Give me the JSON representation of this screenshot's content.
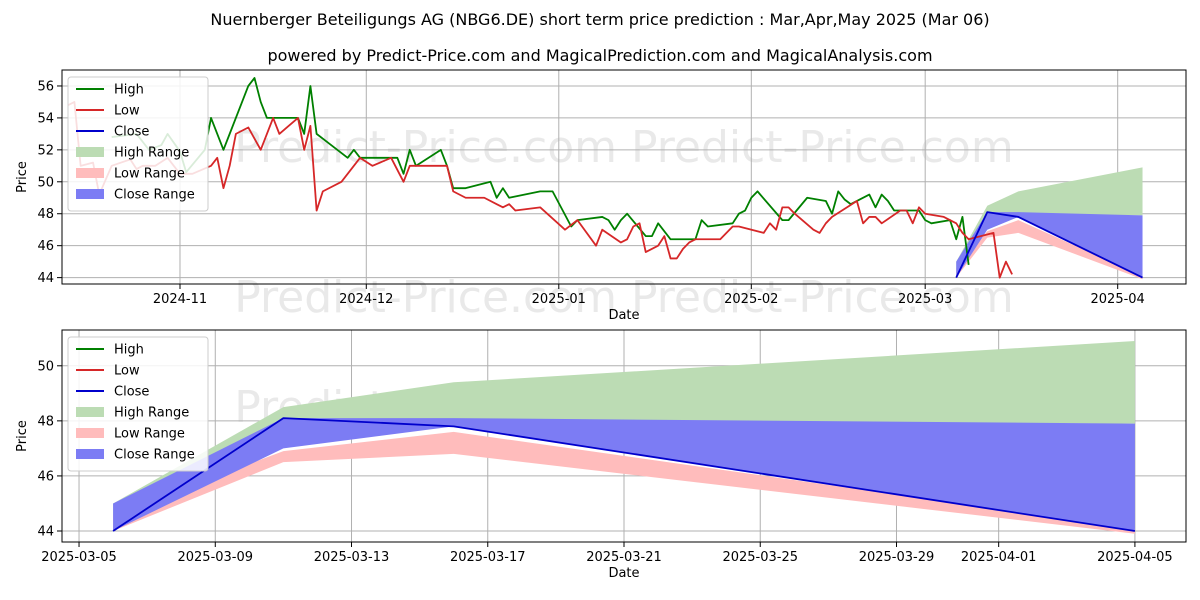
{
  "header": {
    "title": "Nuernberger Beteiligungs AG (NBG6.DE) short term price prediction : Mar,Apr,May 2025 (Mar 06)",
    "subtitle": "powered by Predict-Price.com and MagicalPrediction.com and MagicalAnalysis.com"
  },
  "watermark": "Predict-Price.com",
  "colors": {
    "high": "#008000",
    "low": "#d62728",
    "close": "#0000cc",
    "high_range": "#bcdcb4",
    "low_range": "#ffbcbc",
    "close_range": "#7c7cf4",
    "grid": "#b0b0b0"
  },
  "legend": [
    {
      "label": "High",
      "kind": "line",
      "color": "#008000"
    },
    {
      "label": "Low",
      "kind": "line",
      "color": "#d62728"
    },
    {
      "label": "Close",
      "kind": "line",
      "color": "#0000cc"
    },
    {
      "label": "High Range",
      "kind": "area",
      "color": "#bcdcb4"
    },
    {
      "label": "Low Range",
      "kind": "area",
      "color": "#ffbcbc"
    },
    {
      "label": "Close Range",
      "kind": "area",
      "color": "#7c7cf4"
    }
  ],
  "chart_data": [
    {
      "type": "line",
      "xlabel": "Date",
      "ylabel": "Price",
      "xlim": [
        "2024-10-13",
        "2025-04-12"
      ],
      "ylim": [
        43.6,
        57.0
      ],
      "x_ticks": [
        {
          "date": "2024-11-01",
          "label": "2024-11"
        },
        {
          "date": "2024-12-01",
          "label": "2024-12"
        },
        {
          "date": "2025-01-01",
          "label": "2025-01"
        },
        {
          "date": "2025-02-01",
          "label": "2025-02"
        },
        {
          "date": "2025-03-01",
          "label": "2025-03"
        },
        {
          "date": "2025-04-01",
          "label": "2025-04"
        }
      ],
      "y_ticks": [
        44,
        46,
        48,
        50,
        52,
        54,
        56
      ],
      "grid": true,
      "legend_position": "top-left",
      "history": {
        "high": [
          [
            "2024-10-21",
            52.8
          ],
          [
            "2024-10-25",
            53.0
          ],
          [
            "2024-10-27",
            52.0
          ],
          [
            "2024-10-29",
            52.3
          ],
          [
            "2024-10-30",
            53.0
          ],
          [
            "2024-11-01",
            51.9
          ],
          [
            "2024-11-02",
            50.6
          ],
          [
            "2024-11-05",
            52.0
          ],
          [
            "2024-11-06",
            54.0
          ],
          [
            "2024-11-08",
            52.0
          ],
          [
            "2024-11-09",
            53.0
          ],
          [
            "2024-11-12",
            56.0
          ],
          [
            "2024-11-13",
            56.5
          ],
          [
            "2024-11-14",
            55.0
          ],
          [
            "2024-11-15",
            54.0
          ],
          [
            "2024-11-20",
            54.0
          ],
          [
            "2024-11-21",
            53.0
          ],
          [
            "2024-11-22",
            56.0
          ],
          [
            "2024-11-23",
            53.0
          ],
          [
            "2024-11-25",
            52.4
          ],
          [
            "2024-11-28",
            51.5
          ],
          [
            "2024-11-29",
            52.0
          ],
          [
            "2024-11-30",
            51.5
          ],
          [
            "2024-12-04",
            51.5
          ],
          [
            "2024-12-06",
            51.5
          ],
          [
            "2024-12-07",
            50.5
          ],
          [
            "2024-12-08",
            52.0
          ],
          [
            "2024-12-09",
            51.0
          ],
          [
            "2024-12-13",
            52.0
          ],
          [
            "2024-12-14",
            51.0
          ],
          [
            "2024-12-15",
            49.6
          ],
          [
            "2024-12-17",
            49.6
          ],
          [
            "2024-12-21",
            50.0
          ],
          [
            "2024-12-22",
            49.0
          ],
          [
            "2024-12-23",
            49.6
          ],
          [
            "2024-12-24",
            49.0
          ],
          [
            "2024-12-29",
            49.4
          ],
          [
            "2024-12-31",
            49.4
          ],
          [
            "2025-01-03",
            47.2
          ],
          [
            "2025-01-04",
            47.6
          ],
          [
            "2025-01-08",
            47.8
          ],
          [
            "2025-01-09",
            47.6
          ],
          [
            "2025-01-10",
            47.0
          ],
          [
            "2025-01-11",
            47.6
          ],
          [
            "2025-01-12",
            48.0
          ],
          [
            "2025-01-15",
            46.6
          ],
          [
            "2025-01-16",
            46.6
          ],
          [
            "2025-01-17",
            47.4
          ],
          [
            "2025-01-19",
            46.4
          ],
          [
            "2025-01-23",
            46.4
          ],
          [
            "2025-01-24",
            47.6
          ],
          [
            "2025-01-25",
            47.2
          ],
          [
            "2025-01-29",
            47.4
          ],
          [
            "2025-01-30",
            48.0
          ],
          [
            "2025-01-31",
            48.2
          ],
          [
            "2025-02-01",
            49.0
          ],
          [
            "2025-02-02",
            49.4
          ],
          [
            "2025-02-06",
            47.6
          ],
          [
            "2025-02-07",
            47.6
          ],
          [
            "2025-02-10",
            49.0
          ],
          [
            "2025-02-13",
            48.8
          ],
          [
            "2025-02-14",
            48.0
          ],
          [
            "2025-02-15",
            49.4
          ],
          [
            "2025-02-16",
            48.9
          ],
          [
            "2025-02-17",
            48.6
          ],
          [
            "2025-02-20",
            49.2
          ],
          [
            "2025-02-21",
            48.4
          ],
          [
            "2025-02-22",
            49.2
          ],
          [
            "2025-02-23",
            48.8
          ],
          [
            "2025-02-24",
            48.2
          ],
          [
            "2025-02-28",
            48.2
          ],
          [
            "2025-03-01",
            47.6
          ],
          [
            "2025-03-02",
            47.4
          ],
          [
            "2025-03-05",
            47.6
          ],
          [
            "2025-03-06",
            46.4
          ],
          [
            "2025-03-07",
            47.8
          ],
          [
            "2025-03-08",
            44.8
          ]
        ],
        "low": [
          [
            "2024-10-14",
            54.8
          ],
          [
            "2024-10-15",
            55.0
          ],
          [
            "2024-10-16",
            51.0
          ],
          [
            "2024-10-18",
            51.2
          ],
          [
            "2024-10-19",
            49.2
          ],
          [
            "2024-10-21",
            51.0
          ],
          [
            "2024-10-24",
            51.4
          ],
          [
            "2024-10-25",
            50.8
          ],
          [
            "2024-10-26",
            51.0
          ],
          [
            "2024-10-28",
            51.0
          ],
          [
            "2024-10-30",
            51.5
          ],
          [
            "2024-11-01",
            50.5
          ],
          [
            "2024-11-03",
            50.5
          ],
          [
            "2024-11-06",
            51.0
          ],
          [
            "2024-11-07",
            51.5
          ],
          [
            "2024-11-08",
            49.6
          ],
          [
            "2024-11-09",
            51.0
          ],
          [
            "2024-11-10",
            53.0
          ],
          [
            "2024-11-12",
            53.4
          ],
          [
            "2024-11-14",
            52.0
          ],
          [
            "2024-11-16",
            54.0
          ],
          [
            "2024-11-17",
            53.0
          ],
          [
            "2024-11-20",
            54.0
          ],
          [
            "2024-11-21",
            52.0
          ],
          [
            "2024-11-22",
            53.5
          ],
          [
            "2024-11-23",
            48.2
          ],
          [
            "2024-11-24",
            49.4
          ],
          [
            "2024-11-27",
            50.0
          ],
          [
            "2024-11-29",
            51.0
          ],
          [
            "2024-11-30",
            51.5
          ],
          [
            "2024-12-02",
            51.0
          ],
          [
            "2024-12-05",
            51.5
          ],
          [
            "2024-12-07",
            50.0
          ],
          [
            "2024-12-08",
            51.0
          ],
          [
            "2024-12-14",
            51.0
          ],
          [
            "2024-12-15",
            49.4
          ],
          [
            "2024-12-17",
            49.0
          ],
          [
            "2024-12-20",
            49.0
          ],
          [
            "2024-12-22",
            48.6
          ],
          [
            "2024-12-23",
            48.4
          ],
          [
            "2024-12-24",
            48.6
          ],
          [
            "2024-12-25",
            48.2
          ],
          [
            "2024-12-29",
            48.4
          ],
          [
            "2025-01-02",
            47.0
          ],
          [
            "2025-01-04",
            47.6
          ],
          [
            "2025-01-07",
            46.0
          ],
          [
            "2025-01-08",
            47.0
          ],
          [
            "2025-01-11",
            46.2
          ],
          [
            "2025-01-12",
            46.4
          ],
          [
            "2025-01-13",
            47.2
          ],
          [
            "2025-01-14",
            47.4
          ],
          [
            "2025-01-15",
            45.6
          ],
          [
            "2025-01-17",
            46.0
          ],
          [
            "2025-01-18",
            46.6
          ],
          [
            "2025-01-19",
            45.2
          ],
          [
            "2025-01-20",
            45.2
          ],
          [
            "2025-01-21",
            45.8
          ],
          [
            "2025-01-22",
            46.2
          ],
          [
            "2025-01-23",
            46.4
          ],
          [
            "2025-01-27",
            46.4
          ],
          [
            "2025-01-28",
            46.8
          ],
          [
            "2025-01-29",
            47.2
          ],
          [
            "2025-01-30",
            47.2
          ],
          [
            "2025-02-03",
            46.8
          ],
          [
            "2025-02-04",
            47.4
          ],
          [
            "2025-02-05",
            47.0
          ],
          [
            "2025-02-06",
            48.4
          ],
          [
            "2025-02-07",
            48.4
          ],
          [
            "2025-02-08",
            48.0
          ],
          [
            "2025-02-11",
            47.0
          ],
          [
            "2025-02-12",
            46.8
          ],
          [
            "2025-02-13",
            47.4
          ],
          [
            "2025-02-14",
            47.8
          ],
          [
            "2025-02-18",
            48.8
          ],
          [
            "2025-02-19",
            47.4
          ],
          [
            "2025-02-20",
            47.8
          ],
          [
            "2025-02-21",
            47.8
          ],
          [
            "2025-02-22",
            47.4
          ],
          [
            "2025-02-25",
            48.2
          ],
          [
            "2025-02-26",
            48.2
          ],
          [
            "2025-02-27",
            47.4
          ],
          [
            "2025-02-28",
            48.4
          ],
          [
            "2025-03-01",
            48.0
          ],
          [
            "2025-03-04",
            47.8
          ],
          [
            "2025-03-06",
            47.4
          ],
          [
            "2025-03-07",
            46.8
          ],
          [
            "2025-03-08",
            46.4
          ],
          [
            "2025-03-12",
            46.8
          ],
          [
            "2025-03-13",
            44.0
          ],
          [
            "2025-03-14",
            45.0
          ],
          [
            "2025-03-15",
            44.2
          ]
        ]
      }
    },
    {
      "type": "area",
      "xlabel": "Date",
      "ylabel": "Price",
      "xlim": [
        "2025-03-04.5",
        "2025-04-06.5"
      ],
      "ylim": [
        43.6,
        51.3
      ],
      "x_ticks": [
        {
          "date": "2025-03-05",
          "label": "2025-03-05"
        },
        {
          "date": "2025-03-09",
          "label": "2025-03-09"
        },
        {
          "date": "2025-03-13",
          "label": "2025-03-13"
        },
        {
          "date": "2025-03-17",
          "label": "2025-03-17"
        },
        {
          "date": "2025-03-21",
          "label": "2025-03-21"
        },
        {
          "date": "2025-03-25",
          "label": "2025-03-25"
        },
        {
          "date": "2025-03-29",
          "label": "2025-03-29"
        },
        {
          "date": "2025-04-01",
          "label": "2025-04-01"
        },
        {
          "date": "2025-04-05",
          "label": "2025-04-05"
        }
      ],
      "y_ticks": [
        44,
        46,
        48,
        50
      ],
      "grid": true,
      "legend_position": "top-left"
    }
  ],
  "forecast": {
    "dates": [
      "2025-03-06",
      "2025-03-11",
      "2025-03-16",
      "2025-04-05"
    ],
    "high_range": {
      "upper": [
        45.0,
        48.5,
        49.4,
        50.9
      ],
      "lower": [
        44.0,
        48.0,
        48.0,
        47.9
      ]
    },
    "low_range": {
      "upper": [
        44.6,
        46.9,
        47.6,
        44.1
      ],
      "lower": [
        44.0,
        46.5,
        46.8,
        43.9
      ]
    },
    "close_range": {
      "upper": [
        45.0,
        48.1,
        48.1,
        47.9
      ],
      "lower": [
        44.0,
        47.0,
        47.8,
        44.0
      ]
    },
    "close": [
      44.0,
      48.1,
      47.8,
      44.0
    ]
  }
}
